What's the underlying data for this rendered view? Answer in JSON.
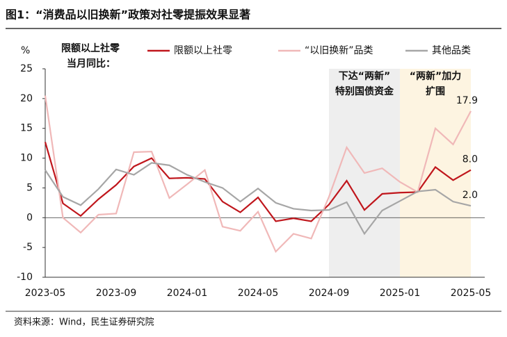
{
  "chart_data": {
    "type": "line",
    "title": "图1：“消费品以旧换新”政策对社零提振效果显著",
    "source": "资料来源：Wind，民生证券研究院",
    "y_unit": "%",
    "note": [
      "限额以上社零",
      "当月同比："
    ],
    "x": [
      "2023-05",
      "2023-06",
      "2023-07",
      "2023-08",
      "2023-09",
      "2023-10",
      "2023-11",
      "2023-12",
      "2024-01",
      "2024-02",
      "2024-03",
      "2024-04",
      "2024-05",
      "2024-06",
      "2024-07",
      "2024-08",
      "2024-09",
      "2024-10",
      "2024-11",
      "2024-12",
      "2025-01",
      "2025-02",
      "2025-03",
      "2025-04",
      "2025-05"
    ],
    "xticks": [
      "2023-05",
      "2023-09",
      "2024-01",
      "2024-05",
      "2024-09",
      "2025-01",
      "2025-05"
    ],
    "ylim": [
      -10,
      25
    ],
    "yticks": [
      -10,
      -5,
      0,
      5,
      10,
      15,
      20,
      25
    ],
    "bands": [
      {
        "from": "2024-09",
        "to": "2025-01",
        "color": "#eeeeee",
        "label": [
          "下达“两新”",
          "特别国债资金"
        ]
      },
      {
        "from": "2025-01",
        "to": "2025-05",
        "color": "#fdf4e1",
        "label": [
          "“两新”加力",
          "扩围"
        ]
      }
    ],
    "series": [
      {
        "name": "限额以上社零",
        "color": "#c0161c",
        "values": [
          12.7,
          2.4,
          0.3,
          3.1,
          5.5,
          8.6,
          10.0,
          6.6,
          6.7,
          6.5,
          2.7,
          0.9,
          3.4,
          -0.6,
          -0.1,
          -0.6,
          2.2,
          6.2,
          1.3,
          4.0,
          4.2,
          4.3,
          8.5,
          6.3,
          8.0
        ],
        "value_labels": [
          null,
          null,
          null,
          null,
          null,
          null,
          null,
          null,
          null,
          null,
          null,
          null,
          null,
          null,
          null,
          null,
          null,
          null,
          null,
          null,
          null,
          null,
          null,
          null,
          "8.0"
        ]
      },
      {
        "name": "“以旧换新”品类",
        "color": "#f0b8b8",
        "values": [
          20.5,
          0,
          -2.5,
          0.5,
          0.7,
          11.0,
          11.1,
          3.3,
          5.6,
          8.0,
          -1.5,
          -2.2,
          1.0,
          -5.7,
          -2.7,
          -3.5,
          3.5,
          11.8,
          7.5,
          8.3,
          6.0,
          4.3,
          15.0,
          12.3,
          17.9
        ],
        "value_labels": [
          null,
          null,
          null,
          null,
          null,
          null,
          null,
          null,
          null,
          null,
          null,
          null,
          null,
          null,
          null,
          null,
          null,
          null,
          null,
          null,
          null,
          null,
          null,
          null,
          "17.9"
        ]
      },
      {
        "name": "其他品类",
        "color": "#a6a6a6",
        "values": [
          8.0,
          3.5,
          2.1,
          4.8,
          8.1,
          7.2,
          9.2,
          8.8,
          7.2,
          6.0,
          5.0,
          2.7,
          4.9,
          2.5,
          1.5,
          1.2,
          1.3,
          2.6,
          -2.7,
          1.2,
          2.8,
          4.4,
          4.7,
          2.7,
          2.0
        ],
        "value_labels": [
          null,
          null,
          null,
          null,
          null,
          null,
          null,
          null,
          null,
          null,
          null,
          null,
          null,
          null,
          null,
          null,
          null,
          null,
          null,
          null,
          null,
          null,
          null,
          null,
          "2.0"
        ]
      }
    ]
  }
}
